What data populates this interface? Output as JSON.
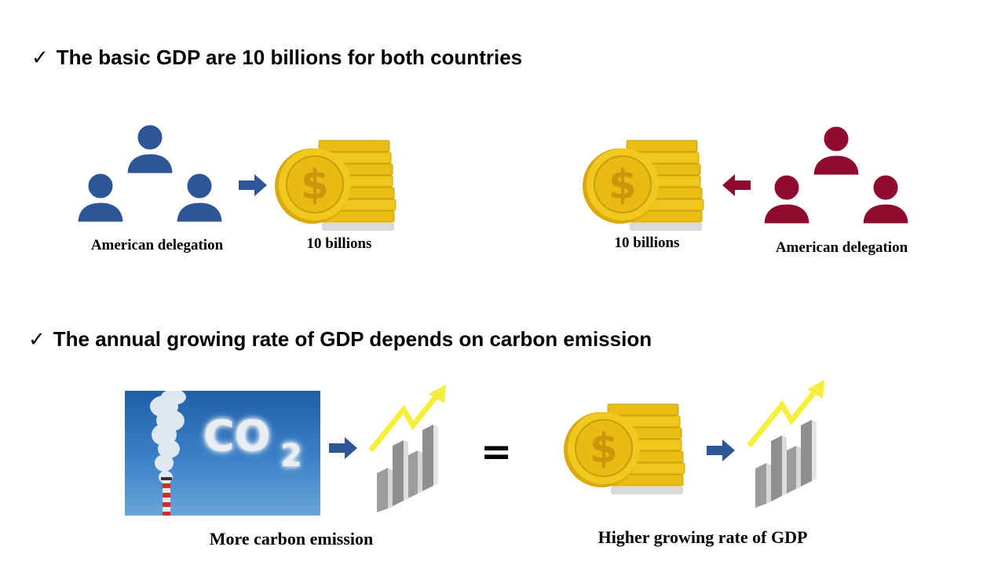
{
  "headings": {
    "first": "The basic GDP are 10 billions for both countries",
    "second": "The annual growing rate of GDP depends on carbon emission"
  },
  "check_glyph": "✓",
  "left_group": {
    "people_label": "American delegation",
    "money_label": "10 billions",
    "color": "#2e5597"
  },
  "right_group": {
    "people_label": "American delegation",
    "money_label": "10 billions",
    "color": "#8f0a2e"
  },
  "bottom": {
    "photo_text_main": "CO",
    "photo_text_sub": "2",
    "left_caption": "More carbon emission",
    "equals": "=",
    "right_caption": "Higher growing rate of GDP"
  },
  "colors": {
    "arrow_blue": "#2e5597",
    "coin_gold": "#f2c81f",
    "trend_yellow": "#f5ee3a"
  },
  "icons": [
    "people-group-icon",
    "coin-stack-icon",
    "right-arrow-icon",
    "left-arrow-icon",
    "growth-chart-icon",
    "smokestack-photo"
  ]
}
